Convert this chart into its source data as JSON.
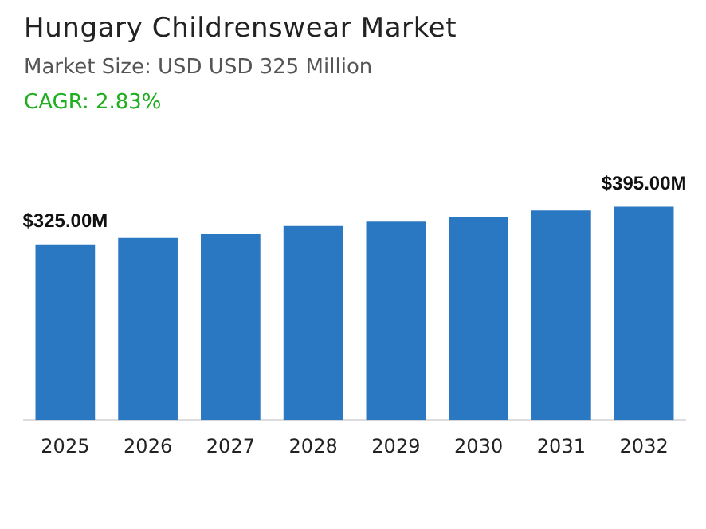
{
  "chart_data": {
    "type": "bar",
    "title": "Hungary Childrenswear Market",
    "subtitle": "Market Size: USD USD 325 Million",
    "annotations": [
      "CAGR: 2.83%"
    ],
    "categories": [
      "2025",
      "2026",
      "2027",
      "2028",
      "2029",
      "2030",
      "2031",
      "2032"
    ],
    "values": [
      325,
      337,
      344,
      359,
      367,
      375,
      388,
      395
    ],
    "value_labels": [
      "$325.00M",
      null,
      null,
      null,
      null,
      null,
      null,
      "$395.00M"
    ],
    "color": "#2b78c2",
    "grid": false,
    "legend": false
  }
}
